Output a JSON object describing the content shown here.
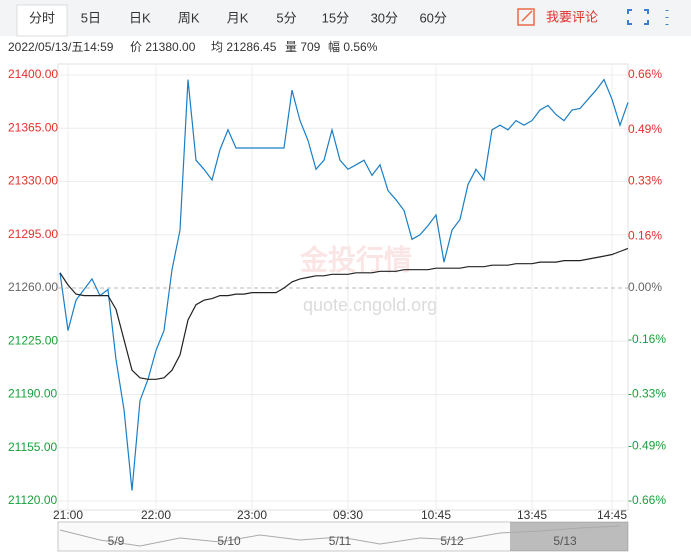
{
  "tabs": [
    "分时",
    "5日",
    "日K",
    "周K",
    "月K",
    "5分",
    "15分",
    "30分",
    "60分"
  ],
  "comment": "我要评论",
  "info": [
    "2022/05/13/五14:59",
    "价 21380.00",
    "均 21286.45",
    "量 709",
    "幅 0.56%"
  ],
  "watermark": [
    "金投行情",
    "quote.cngold.org"
  ],
  "navigator": [
    "5/9",
    "5/10",
    "5/11",
    "5/12",
    "5/13"
  ],
  "chart_data": {
    "type": "line",
    "categories": [
      null,
      "21:00",
      null,
      null,
      null,
      null,
      null,
      null,
      null,
      null,
      null,
      null,
      "22:00",
      null,
      null,
      null,
      null,
      null,
      null,
      null,
      null,
      null,
      null,
      null,
      "23:00",
      null,
      null,
      null,
      null,
      null,
      null,
      null,
      null,
      null,
      null,
      null,
      "09:30",
      null,
      null,
      null,
      null,
      null,
      null,
      null,
      null,
      null,
      null,
      "10:45",
      null,
      null,
      null,
      null,
      null,
      null,
      null,
      null,
      null,
      null,
      null,
      "13:45",
      null,
      null,
      null,
      null,
      null,
      null,
      null,
      null,
      null,
      "14:45",
      null,
      null
    ],
    "series": [
      {
        "color": "#1a7ec6",
        "values": [
          21270,
          21232,
          21252,
          21259,
          21266,
          21255,
          21259,
          21213,
          21180,
          21127,
          21186,
          21200,
          21219,
          21232,
          21272,
          21298,
          21397,
          21344,
          21338,
          21331,
          21351,
          21364,
          21352,
          21352,
          21352,
          21352,
          21352,
          21352,
          21352,
          21390,
          21370,
          21357,
          21338,
          21344,
          21364,
          21344,
          21338,
          21341,
          21344,
          21334,
          21341,
          21324,
          21318,
          21311,
          21292,
          21295,
          21301,
          21308,
          21277,
          21298,
          21305,
          21328,
          21338,
          21331,
          21364,
          21367,
          21364,
          21370,
          21367,
          21370,
          21377,
          21380,
          21374,
          21370,
          21377,
          21378,
          21384,
          21390,
          21397,
          21384,
          21367,
          21382
        ]
      },
      {
        "color": "#222222",
        "values": [
          21270,
          21262,
          21256,
          21255,
          21255,
          21255,
          21255,
          21246,
          21226,
          21206,
          21201,
          21200,
          21200,
          21201,
          21206,
          21216,
          21239,
          21249,
          21252,
          21253,
          21255,
          21255,
          21256,
          21256,
          21257,
          21257,
          21257,
          21257,
          21260,
          21264,
          21266,
          21267,
          21268,
          21268,
          21269,
          21269,
          21269,
          21270,
          21270,
          21270,
          21271,
          21271,
          21271,
          21272,
          21272,
          21272,
          21272,
          21273,
          21273,
          21273,
          21273,
          21274,
          21274,
          21274,
          21275,
          21275,
          21275,
          21276,
          21276,
          21276,
          21277,
          21277,
          21277,
          21278,
          21278,
          21278,
          21279,
          21280,
          21281,
          21282,
          21284,
          21286
        ]
      }
    ],
    "ylim": [
      21120,
      21400
    ],
    "yticks": [
      {
        "value": 21400,
        "label": "21400.00"
      },
      {
        "value": 21365,
        "label": "21365.00"
      },
      {
        "value": 21330,
        "label": "21330.00"
      },
      {
        "value": 21295,
        "label": "21295.00"
      },
      {
        "value": 21260,
        "label": "21260.00"
      },
      {
        "value": 21225,
        "label": "21225.00"
      },
      {
        "value": 21190,
        "label": "21190.00"
      },
      {
        "value": 21155,
        "label": "21155.00"
      },
      {
        "value": 21120,
        "label": "21120.00"
      }
    ],
    "y2lim": [
      -0.66,
      0.66
    ],
    "y2ticks": [
      {
        "value": 0.66,
        "label": "0.66%"
      },
      {
        "value": 0.49,
        "label": "0.49%"
      },
      {
        "value": 0.33,
        "label": "0.33%"
      },
      {
        "value": 0.16,
        "label": "0.16%"
      },
      {
        "value": 0,
        "label": "0.00%"
      },
      {
        "value": -0.16,
        "label": "-0.16%"
      },
      {
        "value": -0.33,
        "label": "-0.33%"
      },
      {
        "value": -0.49,
        "label": "-0.49%"
      },
      {
        "value": -0.66,
        "label": "-0.66%"
      }
    ],
    "baseline": 21260,
    "grid": true,
    "up_color": "#e0312c",
    "down_color": "#18a03a"
  }
}
